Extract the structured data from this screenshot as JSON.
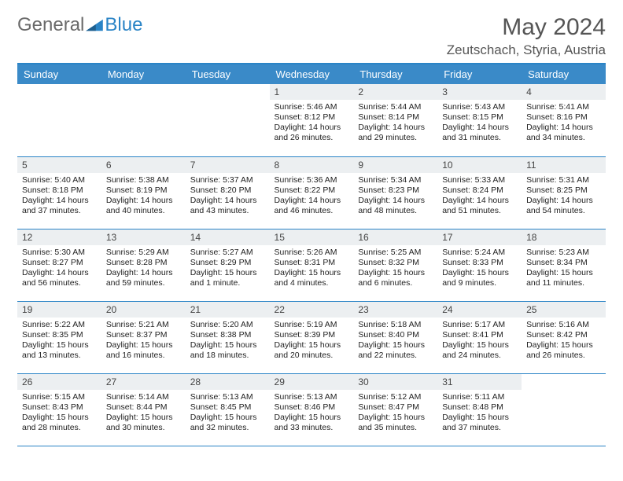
{
  "brand": {
    "part1": "General",
    "part2": "Blue"
  },
  "title": "May 2024",
  "location": "Zeutschach, Styria, Austria",
  "colors": {
    "accent": "#2a84c6",
    "header_bg": "#3a8ac8",
    "header_text": "#ffffff",
    "daynum_bg": "#eceff1",
    "text": "#222222",
    "brand_gray": "#6a6a6a"
  },
  "weekdays": [
    "Sunday",
    "Monday",
    "Tuesday",
    "Wednesday",
    "Thursday",
    "Friday",
    "Saturday"
  ],
  "weeks": [
    [
      null,
      null,
      null,
      {
        "n": "1",
        "sunrise": "5:46 AM",
        "sunset": "8:12 PM",
        "daylight": "14 hours and 26 minutes."
      },
      {
        "n": "2",
        "sunrise": "5:44 AM",
        "sunset": "8:14 PM",
        "daylight": "14 hours and 29 minutes."
      },
      {
        "n": "3",
        "sunrise": "5:43 AM",
        "sunset": "8:15 PM",
        "daylight": "14 hours and 31 minutes."
      },
      {
        "n": "4",
        "sunrise": "5:41 AM",
        "sunset": "8:16 PM",
        "daylight": "14 hours and 34 minutes."
      }
    ],
    [
      {
        "n": "5",
        "sunrise": "5:40 AM",
        "sunset": "8:18 PM",
        "daylight": "14 hours and 37 minutes."
      },
      {
        "n": "6",
        "sunrise": "5:38 AM",
        "sunset": "8:19 PM",
        "daylight": "14 hours and 40 minutes."
      },
      {
        "n": "7",
        "sunrise": "5:37 AM",
        "sunset": "8:20 PM",
        "daylight": "14 hours and 43 minutes."
      },
      {
        "n": "8",
        "sunrise": "5:36 AM",
        "sunset": "8:22 PM",
        "daylight": "14 hours and 46 minutes."
      },
      {
        "n": "9",
        "sunrise": "5:34 AM",
        "sunset": "8:23 PM",
        "daylight": "14 hours and 48 minutes."
      },
      {
        "n": "10",
        "sunrise": "5:33 AM",
        "sunset": "8:24 PM",
        "daylight": "14 hours and 51 minutes."
      },
      {
        "n": "11",
        "sunrise": "5:31 AM",
        "sunset": "8:25 PM",
        "daylight": "14 hours and 54 minutes."
      }
    ],
    [
      {
        "n": "12",
        "sunrise": "5:30 AM",
        "sunset": "8:27 PM",
        "daylight": "14 hours and 56 minutes."
      },
      {
        "n": "13",
        "sunrise": "5:29 AM",
        "sunset": "8:28 PM",
        "daylight": "14 hours and 59 minutes."
      },
      {
        "n": "14",
        "sunrise": "5:27 AM",
        "sunset": "8:29 PM",
        "daylight": "15 hours and 1 minute."
      },
      {
        "n": "15",
        "sunrise": "5:26 AM",
        "sunset": "8:31 PM",
        "daylight": "15 hours and 4 minutes."
      },
      {
        "n": "16",
        "sunrise": "5:25 AM",
        "sunset": "8:32 PM",
        "daylight": "15 hours and 6 minutes."
      },
      {
        "n": "17",
        "sunrise": "5:24 AM",
        "sunset": "8:33 PM",
        "daylight": "15 hours and 9 minutes."
      },
      {
        "n": "18",
        "sunrise": "5:23 AM",
        "sunset": "8:34 PM",
        "daylight": "15 hours and 11 minutes."
      }
    ],
    [
      {
        "n": "19",
        "sunrise": "5:22 AM",
        "sunset": "8:35 PM",
        "daylight": "15 hours and 13 minutes."
      },
      {
        "n": "20",
        "sunrise": "5:21 AM",
        "sunset": "8:37 PM",
        "daylight": "15 hours and 16 minutes."
      },
      {
        "n": "21",
        "sunrise": "5:20 AM",
        "sunset": "8:38 PM",
        "daylight": "15 hours and 18 minutes."
      },
      {
        "n": "22",
        "sunrise": "5:19 AM",
        "sunset": "8:39 PM",
        "daylight": "15 hours and 20 minutes."
      },
      {
        "n": "23",
        "sunrise": "5:18 AM",
        "sunset": "8:40 PM",
        "daylight": "15 hours and 22 minutes."
      },
      {
        "n": "24",
        "sunrise": "5:17 AM",
        "sunset": "8:41 PM",
        "daylight": "15 hours and 24 minutes."
      },
      {
        "n": "25",
        "sunrise": "5:16 AM",
        "sunset": "8:42 PM",
        "daylight": "15 hours and 26 minutes."
      }
    ],
    [
      {
        "n": "26",
        "sunrise": "5:15 AM",
        "sunset": "8:43 PM",
        "daylight": "15 hours and 28 minutes."
      },
      {
        "n": "27",
        "sunrise": "5:14 AM",
        "sunset": "8:44 PM",
        "daylight": "15 hours and 30 minutes."
      },
      {
        "n": "28",
        "sunrise": "5:13 AM",
        "sunset": "8:45 PM",
        "daylight": "15 hours and 32 minutes."
      },
      {
        "n": "29",
        "sunrise": "5:13 AM",
        "sunset": "8:46 PM",
        "daylight": "15 hours and 33 minutes."
      },
      {
        "n": "30",
        "sunrise": "5:12 AM",
        "sunset": "8:47 PM",
        "daylight": "15 hours and 35 minutes."
      },
      {
        "n": "31",
        "sunrise": "5:11 AM",
        "sunset": "8:48 PM",
        "daylight": "15 hours and 37 minutes."
      },
      null
    ]
  ],
  "labels": {
    "sunrise": "Sunrise:",
    "sunset": "Sunset:",
    "daylight": "Daylight:"
  }
}
